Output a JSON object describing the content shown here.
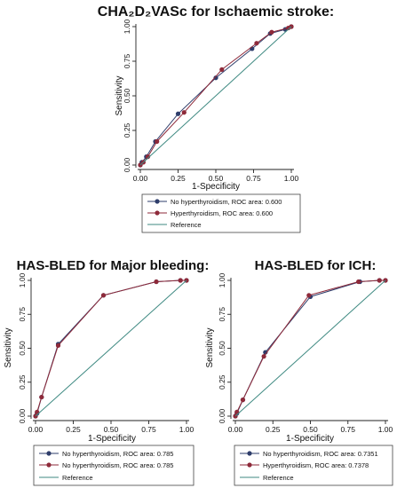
{
  "colors": {
    "no_hyperthyroidism": "#2e3d6b",
    "hyperthyroidism": "#8e2a3a",
    "reference": "#3f8a82",
    "axis": "#222222"
  },
  "chart_data": [
    {
      "type": "line",
      "title": "CHA₂D₂VASc for Ischaemic stroke:",
      "xlabel": "1-Specificity",
      "ylabel": "Sensitivity",
      "xlim": [
        0,
        1
      ],
      "ylim": [
        0,
        1
      ],
      "x_ticks": [
        "0.00",
        "0.25",
        "0.50",
        "0.75",
        "1.00"
      ],
      "y_ticks": [
        "0.00",
        "0.25",
        "0.50",
        "0.75",
        "1.00"
      ],
      "grid": false,
      "legend_position": "bottom",
      "series": [
        {
          "name": "No hyperthyroidism, ROC area: 0.600",
          "x": [
            0,
            0.01,
            0.04,
            0.1,
            0.25,
            0.5,
            0.74,
            0.86,
            0.96,
            1.0
          ],
          "y": [
            0,
            0.02,
            0.06,
            0.17,
            0.37,
            0.63,
            0.84,
            0.95,
            0.98,
            1.0
          ]
        },
        {
          "name": "Hyperthyroidism, ROC area: 0.600",
          "x": [
            0,
            0.02,
            0.05,
            0.11,
            0.29,
            0.54,
            0.77,
            0.87,
            0.98,
            1.0
          ],
          "y": [
            0,
            0.02,
            0.06,
            0.17,
            0.38,
            0.69,
            0.88,
            0.96,
            0.99,
            1.0
          ]
        },
        {
          "name": "Reference",
          "x": [
            0,
            1
          ],
          "y": [
            0,
            1
          ]
        }
      ]
    },
    {
      "type": "line",
      "title": "HAS-BLED for Major bleeding:",
      "xlabel": "1-Specificity",
      "ylabel": "Sensitivity",
      "xlim": [
        0,
        1
      ],
      "ylim": [
        0,
        1
      ],
      "x_ticks": [
        "0.00",
        "0.25",
        "0.50",
        "0.75",
        "1.00"
      ],
      "y_ticks": [
        "0.00",
        "0.25",
        "0.50",
        "0.75",
        "1.00"
      ],
      "grid": false,
      "legend_position": "bottom",
      "series": [
        {
          "name": "No hyperthyroidism, ROC area: 0.785",
          "x": [
            0,
            0.01,
            0.04,
            0.15,
            0.45,
            0.8,
            0.96,
            1.0
          ],
          "y": [
            0,
            0.02,
            0.14,
            0.53,
            0.89,
            0.99,
            1.0,
            1.0
          ]
        },
        {
          "name": "No hyperthyroidism, ROC area: 0.785",
          "x": [
            0,
            0.01,
            0.04,
            0.15,
            0.45,
            0.8,
            0.96,
            1.0
          ],
          "y": [
            0,
            0.03,
            0.14,
            0.52,
            0.89,
            0.99,
            1.0,
            1.0
          ]
        },
        {
          "name": "Reference",
          "x": [
            0,
            1
          ],
          "y": [
            0,
            1
          ]
        }
      ]
    },
    {
      "type": "line",
      "title": "HAS-BLED for ICH:",
      "xlabel": "1-Specificity",
      "ylabel": "Sensitivity",
      "xlim": [
        0,
        1
      ],
      "ylim": [
        0,
        1
      ],
      "x_ticks": [
        "0.00",
        "0.25",
        "0.50",
        "0.75",
        "1.00"
      ],
      "y_ticks": [
        "0.00",
        "0.25",
        "0.50",
        "0.75",
        "1.00"
      ],
      "grid": false,
      "legend_position": "bottom",
      "series": [
        {
          "name": "No hyperthyroidism, ROC area: 0.7351",
          "x": [
            0,
            0.01,
            0.05,
            0.2,
            0.5,
            0.83,
            0.96,
            1.0
          ],
          "y": [
            0,
            0.02,
            0.12,
            0.47,
            0.88,
            0.99,
            1.0,
            1.0
          ]
        },
        {
          "name": "Hyperthyroidism, ROC area: 0.7378",
          "x": [
            0,
            0.01,
            0.05,
            0.19,
            0.49,
            0.82,
            0.96,
            1.0
          ],
          "y": [
            0,
            0.03,
            0.12,
            0.44,
            0.89,
            0.99,
            1.0,
            1.0
          ]
        },
        {
          "name": "Reference",
          "x": [
            0,
            1
          ],
          "y": [
            0,
            1
          ]
        }
      ]
    }
  ]
}
